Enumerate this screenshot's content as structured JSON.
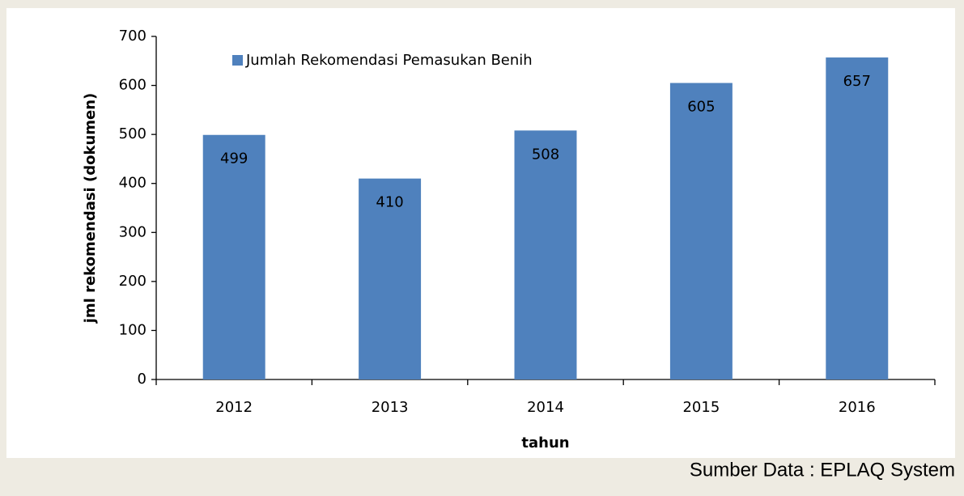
{
  "chart_data": {
    "type": "bar",
    "categories": [
      "2012",
      "2013",
      "2014",
      "2015",
      "2016"
    ],
    "series": [
      {
        "name": "Jumlah Rekomendasi Pemasukan Benih",
        "color": "#4f81bd",
        "values": [
          499,
          410,
          508,
          605,
          657
        ]
      }
    ],
    "ylim": [
      0,
      700
    ],
    "yticks": [
      0,
      100,
      200,
      300,
      400,
      500,
      600,
      700
    ],
    "xlabel": "tahun",
    "ylabel": "jml rekomendasi (dokumen)",
    "legend": "top-left",
    "source": "Sumber Data : EPLAQ System"
  }
}
